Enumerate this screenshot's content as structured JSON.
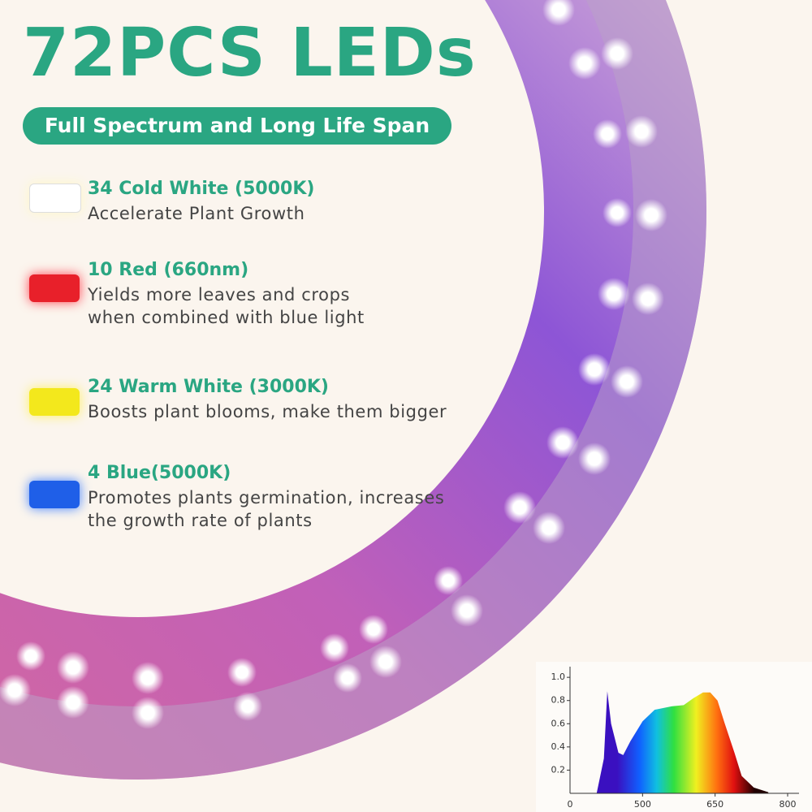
{
  "header": {
    "title": "72PCS LEDs",
    "subtitle": "Full Spectrum and Long Life Span"
  },
  "items": [
    {
      "name": "34 Cold White  (5000K)",
      "lines": [
        "Accelerate Plant Growth"
      ]
    },
    {
      "name": "10 Red  (660nm)",
      "lines": [
        "Yields more leaves and crops",
        "when combined with blue light"
      ]
    },
    {
      "name": "24 Warm White  (3000K)",
      "lines": [
        "Boosts plant blooms, make them bigger"
      ]
    },
    {
      "name": "4 Blue(5000K)",
      "lines": [
        "Promotes plants germination, increases",
        "the growth rate of plants"
      ]
    }
  ],
  "chart_data": {
    "type": "area",
    "x": [
      405,
      420,
      427,
      435,
      450,
      460,
      475,
      500,
      525,
      560,
      585,
      605,
      625,
      640,
      655,
      670,
      690,
      705,
      730,
      760
    ],
    "values": [
      0,
      0.3,
      0.88,
      0.6,
      0.35,
      0.33,
      0.45,
      0.62,
      0.72,
      0.75,
      0.76,
      0.82,
      0.87,
      0.87,
      0.8,
      0.6,
      0.35,
      0.15,
      0.05,
      0.01
    ],
    "xlim": [
      350,
      800
    ],
    "xticks": [
      500,
      650,
      800
    ],
    "origin_label": "0",
    "ylim": [
      0,
      1.05
    ],
    "yticks": [
      0.2,
      0.4,
      0.6,
      0.8,
      {
        "value": 1,
        "label": "1.0"
      }
    ]
  }
}
